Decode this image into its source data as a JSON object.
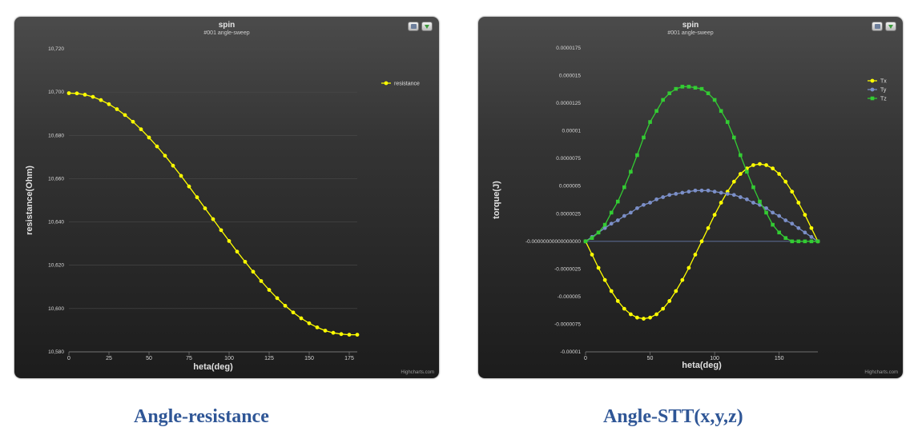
{
  "panels": [
    {
      "credits": "Highcharts.com",
      "caption": "Angle-resistance",
      "toolbar": {
        "print_icon": "print-icon",
        "export_icon": "export-icon"
      }
    },
    {
      "credits": "Highcharts.com",
      "caption": "Angle-STT(x,y,z)",
      "toolbar": {
        "print_icon": "print-icon",
        "export_icon": "export-icon"
      }
    }
  ],
  "chart_data": [
    {
      "type": "line",
      "title": "spin",
      "subtitle": "#001 angle-sweep",
      "xlabel": "heta(deg)",
      "ylabel": "resistance(Ohm)",
      "xlim": [
        0,
        180
      ],
      "ylim": [
        10580,
        10720
      ],
      "x_ticks": [
        0,
        25,
        50,
        75,
        100,
        125,
        150,
        175
      ],
      "x_tick_labels": [
        "0",
        "25",
        "50",
        "75",
        "100",
        "125",
        "150",
        "175"
      ],
      "y_ticks": [
        10580,
        10600,
        10620,
        10640,
        10660,
        10680,
        10700,
        10720
      ],
      "y_tick_labels": [
        "10,580",
        "10,600",
        "10,620",
        "10,640",
        "10,660",
        "10,680",
        "10,700",
        "10,720"
      ],
      "grid": true,
      "legend_position": "top-right",
      "series": [
        {
          "name": "resistance",
          "color": "#ffff00",
          "marker": "circle",
          "x": [
            0,
            5,
            10,
            15,
            20,
            25,
            30,
            35,
            40,
            45,
            50,
            55,
            60,
            65,
            70,
            75,
            80,
            85,
            90,
            95,
            100,
            105,
            110,
            115,
            120,
            125,
            130,
            135,
            140,
            145,
            150,
            155,
            160,
            165,
            170,
            175,
            180
          ],
          "values": [
            10699.5,
            10699.4,
            10698.8,
            10697.8,
            10696.3,
            10694.4,
            10692.1,
            10689.4,
            10686.3,
            10682.8,
            10679.0,
            10674.9,
            10670.6,
            10666.0,
            10661.3,
            10656.4,
            10651.4,
            10646.3,
            10641.3,
            10636.2,
            10631.2,
            10626.3,
            10621.6,
            10617.0,
            10612.7,
            10608.6,
            10604.8,
            10601.3,
            10598.2,
            10595.5,
            10593.2,
            10591.3,
            10589.8,
            10588.8,
            10588.2,
            10587.9,
            10587.9
          ]
        }
      ]
    },
    {
      "type": "line",
      "title": "spin",
      "subtitle": "#001 angle-sweep",
      "xlabel": "heta(deg)",
      "ylabel": "torque(J)",
      "xlim": [
        0,
        180
      ],
      "ylim": [
        -1e-05,
        1.75e-05
      ],
      "x_ticks": [
        0,
        50,
        100,
        150
      ],
      "x_tick_labels": [
        "0",
        "50",
        "100",
        "150"
      ],
      "y_ticks": [
        -1e-05,
        -7.5e-06,
        -5e-06,
        -2.5e-06,
        0,
        2.5e-06,
        5e-06,
        7.5e-06,
        1e-05,
        1.25e-05,
        1.5e-05,
        1.75e-05
      ],
      "y_tick_labels": [
        "-0.00001",
        "-0.0000075",
        "-0.000005",
        "-0.0000025",
        "-0.00000000000000000",
        "0.0000025",
        "0.000005",
        "0.0000075",
        "0.00001",
        "0.0000125",
        "0.000015",
        "0.0000175"
      ],
      "grid": false,
      "legend_position": "top-right",
      "series": [
        {
          "name": "Tx",
          "color": "#ffff00",
          "marker": "circle",
          "x": [
            0,
            5,
            10,
            15,
            20,
            25,
            30,
            35,
            40,
            45,
            50,
            55,
            60,
            65,
            70,
            75,
            80,
            85,
            90,
            95,
            100,
            105,
            110,
            115,
            120,
            125,
            130,
            135,
            140,
            145,
            150,
            155,
            160,
            165,
            170,
            175,
            180
          ],
          "values": [
            0,
            -1.2e-06,
            -2.4e-06,
            -3.5e-06,
            -4.5e-06,
            -5.4e-06,
            -6.1e-06,
            -6.6e-06,
            -6.9e-06,
            -7e-06,
            -6.9e-06,
            -6.6e-06,
            -6.1e-06,
            -5.4e-06,
            -4.5e-06,
            -3.5e-06,
            -2.4e-06,
            -1.2e-06,
            0,
            1.2e-06,
            2.4e-06,
            3.5e-06,
            4.5e-06,
            5.4e-06,
            6.1e-06,
            6.6e-06,
            6.9e-06,
            7e-06,
            6.9e-06,
            6.6e-06,
            6.1e-06,
            5.4e-06,
            4.5e-06,
            3.5e-06,
            2.4e-06,
            1.2e-06,
            0
          ]
        },
        {
          "name": "Ty",
          "color": "#7b8fc8",
          "marker": "circle",
          "x": [
            0,
            5,
            10,
            15,
            20,
            25,
            30,
            35,
            40,
            45,
            50,
            55,
            60,
            65,
            70,
            75,
            80,
            85,
            90,
            95,
            100,
            105,
            110,
            115,
            120,
            125,
            130,
            135,
            140,
            145,
            150,
            155,
            160,
            165,
            170,
            175,
            180
          ],
          "values": [
            0,
            4e-07,
            8e-07,
            1.2e-06,
            1.6e-06,
            1.9e-06,
            2.3e-06,
            2.6e-06,
            3e-06,
            3.3e-06,
            3.5e-06,
            3.8e-06,
            4e-06,
            4.2e-06,
            4.3e-06,
            4.4e-06,
            4.5e-06,
            4.6e-06,
            4.6e-06,
            4.6e-06,
            4.5e-06,
            4.4e-06,
            4.3e-06,
            4.2e-06,
            4e-06,
            3.8e-06,
            3.5e-06,
            3.3e-06,
            3e-06,
            2.6e-06,
            2.3e-06,
            1.9e-06,
            1.6e-06,
            1.2e-06,
            8e-07,
            4e-07,
            0
          ]
        },
        {
          "name": "Tz",
          "color": "#33cc33",
          "marker": "square",
          "x": [
            0,
            5,
            10,
            15,
            20,
            25,
            30,
            35,
            40,
            45,
            50,
            55,
            60,
            65,
            70,
            75,
            80,
            85,
            90,
            95,
            100,
            105,
            110,
            115,
            120,
            125,
            130,
            135,
            140,
            145,
            150,
            155,
            160,
            165,
            170,
            175,
            180
          ],
          "values": [
            0,
            3e-07,
            8e-07,
            1.5e-06,
            2.6e-06,
            3.6e-06,
            4.9e-06,
            6.3e-06,
            7.8e-06,
            9.4e-06,
            1.08e-05,
            1.18e-05,
            1.28e-05,
            1.34e-05,
            1.38e-05,
            1.4e-05,
            1.4e-05,
            1.39e-05,
            1.38e-05,
            1.34e-05,
            1.28e-05,
            1.18e-05,
            1.08e-05,
            9.4e-06,
            7.8e-06,
            6.3e-06,
            4.9e-06,
            3.6e-06,
            2.6e-06,
            1.5e-06,
            8e-07,
            3e-07,
            0,
            0,
            0,
            0,
            0
          ]
        }
      ]
    }
  ]
}
